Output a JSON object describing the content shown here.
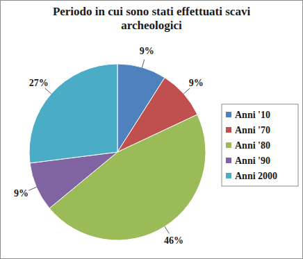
{
  "chart_data": {
    "type": "pie",
    "title": "Periodo in cui sono stati effettuati scavi archeologici",
    "categories": [
      "Anni '10",
      "Anni '70",
      "Anni '80",
      "Anni '90",
      "Anni 2000"
    ],
    "values": [
      9,
      9,
      46,
      9,
      27
    ],
    "value_labels": [
      "9%",
      "9%",
      "46%",
      "9%",
      "27%"
    ],
    "colors": [
      "#4f81bd",
      "#c0504d",
      "#9bbb59",
      "#8064a2",
      "#4bacc6"
    ],
    "data_labels": true,
    "legend": "right"
  }
}
